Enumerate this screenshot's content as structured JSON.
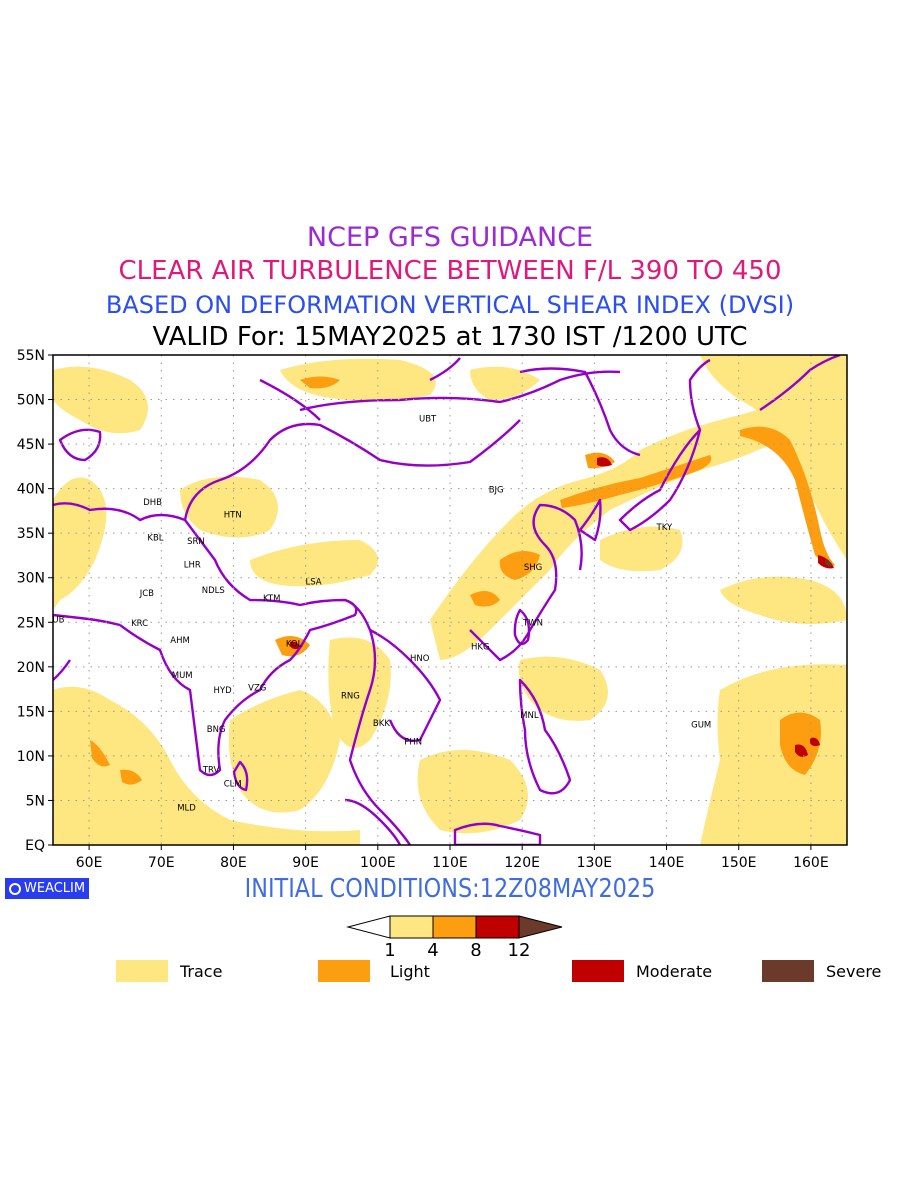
{
  "title": {
    "line1": "NCEP GFS GUIDANCE",
    "line2": "CLEAR AIR TURBULENCE BETWEEN F/L 390 TO 450",
    "line3": "BASED ON DEFORMATION VERTICAL SHEAR INDEX (DVSI)",
    "line4": "VALID For: 15MAY2025 at 1730 IST /1200 UTC"
  },
  "colors": {
    "line1": "#9a2bd0",
    "line2": "#e0187a",
    "line3": "#2a4ef0",
    "init": "#3f6de0",
    "boundary": "#9400c8",
    "trace": "#fee680",
    "light": "#fc9e10",
    "moderate": "#c00000",
    "severe": "#6b3a2a",
    "logo_bg": "#2a3cf0"
  },
  "map": {
    "lon_range": [
      55,
      165
    ],
    "lat_range": [
      0,
      55
    ],
    "lon_ticks": [
      "60E",
      "70E",
      "80E",
      "90E",
      "100E",
      "110E",
      "120E",
      "130E",
      "140E",
      "150E",
      "160E"
    ],
    "lat_ticks": [
      "EQ",
      "5N",
      "10N",
      "15N",
      "20N",
      "25N",
      "30N",
      "35N",
      "40N",
      "45N",
      "50N",
      "55N"
    ],
    "stations": [
      {
        "code": "UBT",
        "lon": 106.9,
        "lat": 47.9
      },
      {
        "code": "BJG",
        "lon": 116.4,
        "lat": 39.9
      },
      {
        "code": "TKY",
        "lon": 139.7,
        "lat": 35.7
      },
      {
        "code": "SHG",
        "lon": 121.5,
        "lat": 31.2
      },
      {
        "code": "TWN",
        "lon": 121.5,
        "lat": 25.0
      },
      {
        "code": "HKG",
        "lon": 114.2,
        "lat": 22.3
      },
      {
        "code": "HNO",
        "lon": 105.8,
        "lat": 21.0
      },
      {
        "code": "MNL",
        "lon": 121.0,
        "lat": 14.6
      },
      {
        "code": "GUM",
        "lon": 144.8,
        "lat": 13.5
      },
      {
        "code": "BKK",
        "lon": 100.5,
        "lat": 13.7
      },
      {
        "code": "PHN",
        "lon": 104.9,
        "lat": 11.6
      },
      {
        "code": "RNG",
        "lon": 96.2,
        "lat": 16.8
      },
      {
        "code": "LSA",
        "lon": 91.1,
        "lat": 29.6
      },
      {
        "code": "KTM",
        "lon": 85.3,
        "lat": 27.7
      },
      {
        "code": "KOL",
        "lon": 88.4,
        "lat": 22.6
      },
      {
        "code": "VZG",
        "lon": 83.3,
        "lat": 17.7
      },
      {
        "code": "HYD",
        "lon": 78.5,
        "lat": 17.4
      },
      {
        "code": "BNG",
        "lon": 77.6,
        "lat": 13.0
      },
      {
        "code": "TRV",
        "lon": 76.9,
        "lat": 8.5
      },
      {
        "code": "CLM",
        "lon": 79.9,
        "lat": 6.9
      },
      {
        "code": "MLD",
        "lon": 73.5,
        "lat": 4.2
      },
      {
        "code": "MUM",
        "lon": 72.9,
        "lat": 19.1
      },
      {
        "code": "AHM",
        "lon": 72.6,
        "lat": 23.0
      },
      {
        "code": "KRC",
        "lon": 67.0,
        "lat": 24.9
      },
      {
        "code": "JCB",
        "lon": 68.0,
        "lat": 28.3
      },
      {
        "code": "DUB",
        "lon": 55.3,
        "lat": 25.3
      },
      {
        "code": "NDLS",
        "lon": 77.2,
        "lat": 28.6
      },
      {
        "code": "LHR",
        "lon": 74.3,
        "lat": 31.5
      },
      {
        "code": "SRN",
        "lon": 74.8,
        "lat": 34.1
      },
      {
        "code": "KBL",
        "lon": 69.2,
        "lat": 34.5
      },
      {
        "code": "DHB",
        "lon": 68.8,
        "lat": 38.5
      },
      {
        "code": "HTN",
        "lon": 79.9,
        "lat": 37.1
      }
    ]
  },
  "initial_conditions": "INITIAL CONDITIONS:12Z08MAY2025",
  "logo": {
    "text": "WEACLIM"
  },
  "colorbar": {
    "ticks": [
      "1",
      "4",
      "8",
      "12"
    ]
  },
  "legend": [
    {
      "label": "Trace",
      "color": "#fee680"
    },
    {
      "label": "Light",
      "color": "#fc9e10"
    },
    {
      "label": "Moderate",
      "color": "#c00000"
    },
    {
      "label": "Severe",
      "color": "#6b3a2a"
    }
  ]
}
